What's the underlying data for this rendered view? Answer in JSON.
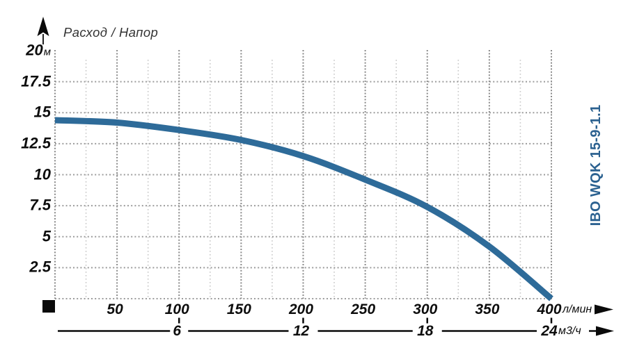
{
  "header": {
    "title": "Расход / Напор"
  },
  "model_label": "IBO WQK 15-9-1.1",
  "axes": {
    "y": {
      "unit": "м",
      "values": [
        20,
        17.5,
        15,
        12.5,
        10,
        7.5,
        5,
        2.5
      ],
      "labels": [
        "20",
        "17.5",
        "15",
        "12.5",
        "10",
        "7.5",
        "5",
        "2.5"
      ]
    },
    "x_primary": {
      "unit": "л/мин",
      "values": [
        50,
        100,
        150,
        200,
        250,
        300,
        350,
        400
      ],
      "labels": [
        "50",
        "100",
        "150",
        "200",
        "250",
        "300",
        "350",
        "400"
      ]
    },
    "x_secondary": {
      "unit": "м3/ч",
      "values": [
        6,
        12,
        18,
        24
      ],
      "labels": [
        "6",
        "12",
        "18",
        "24"
      ]
    }
  },
  "colors": {
    "curve": "#2E6B99",
    "model": "#2B6190",
    "grid_major": "#8A8A8A",
    "grid_minor": "#C8C8C8",
    "text": "#0D0D0D",
    "title_text": "#333333"
  },
  "chart_data": {
    "type": "line",
    "title": "Расход / Напор",
    "series": [
      {
        "name": "IBO WQK 15-9-1.1",
        "x": [
          0,
          50,
          100,
          150,
          200,
          250,
          300,
          350,
          400
        ],
        "y": [
          14.4,
          14.2,
          13.6,
          12.8,
          11.5,
          9.6,
          7.4,
          4.2,
          0
        ]
      }
    ],
    "xlabel": "л/мин",
    "x2label": "м3/ч",
    "ylabel": "м",
    "xlim": [
      0,
      400
    ],
    "x2lim": [
      0,
      24
    ],
    "ylim": [
      0,
      20
    ],
    "x_ticks": [
      50,
      100,
      150,
      200,
      250,
      300,
      350,
      400
    ],
    "x_minor_step": 25,
    "x2_ticks": [
      6,
      12,
      18,
      24
    ],
    "y_ticks": [
      2.5,
      5,
      7.5,
      10,
      12.5,
      15,
      17.5,
      20
    ],
    "grid": "dotted",
    "legend_position": "right-vertical-rotated"
  }
}
